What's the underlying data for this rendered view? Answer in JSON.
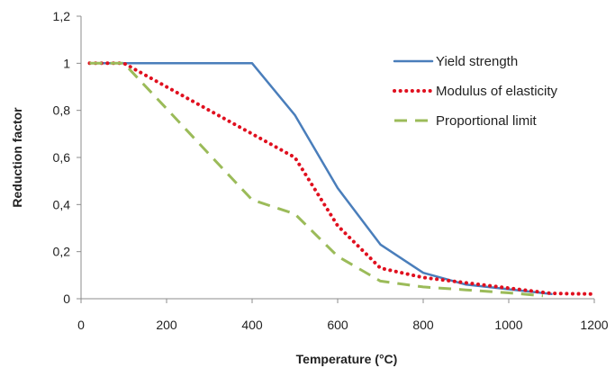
{
  "chart_data": {
    "type": "line",
    "xlabel": "Temperature (°C)",
    "ylabel": "Reduction factor",
    "xlim": [
      0,
      1200
    ],
    "ylim": [
      0,
      1.2
    ],
    "x_ticks": [
      "0",
      "200",
      "400",
      "600",
      "800",
      "1000",
      "1200"
    ],
    "y_ticks": [
      "0",
      "0,2",
      "0,4",
      "0,6",
      "0,8",
      "1",
      "1,2"
    ],
    "grid": "none",
    "legend_position": "right",
    "series": [
      {
        "name": "Yield strength",
        "color": "#4a7ebb",
        "style": "solid",
        "points": [
          [
            20,
            1.0
          ],
          [
            100,
            1.0
          ],
          [
            200,
            1.0
          ],
          [
            300,
            1.0
          ],
          [
            400,
            1.0
          ],
          [
            500,
            0.78
          ],
          [
            600,
            0.47
          ],
          [
            700,
            0.23
          ],
          [
            800,
            0.11
          ],
          [
            900,
            0.06
          ],
          [
            1000,
            0.04
          ],
          [
            1100,
            0.02
          ]
        ]
      },
      {
        "name": "Modulus of elasticity",
        "color": "#e0101f",
        "style": "dotted",
        "points": [
          [
            20,
            1.0
          ],
          [
            100,
            1.0
          ],
          [
            200,
            0.9
          ],
          [
            300,
            0.8
          ],
          [
            400,
            0.7
          ],
          [
            500,
            0.6
          ],
          [
            600,
            0.31
          ],
          [
            700,
            0.13
          ],
          [
            800,
            0.09
          ],
          [
            900,
            0.0675
          ],
          [
            1000,
            0.045
          ],
          [
            1100,
            0.0225
          ],
          [
            1200,
            0.02
          ]
        ]
      },
      {
        "name": "Proportional limit",
        "color": "#9bbb59",
        "style": "dashed",
        "points": [
          [
            20,
            1.0
          ],
          [
            100,
            1.0
          ],
          [
            200,
            0.807
          ],
          [
            300,
            0.613
          ],
          [
            400,
            0.42
          ],
          [
            500,
            0.36
          ],
          [
            600,
            0.18
          ],
          [
            700,
            0.075
          ],
          [
            800,
            0.05
          ],
          [
            900,
            0.0375
          ],
          [
            1000,
            0.025
          ],
          [
            1080,
            0.0125
          ]
        ]
      }
    ]
  }
}
